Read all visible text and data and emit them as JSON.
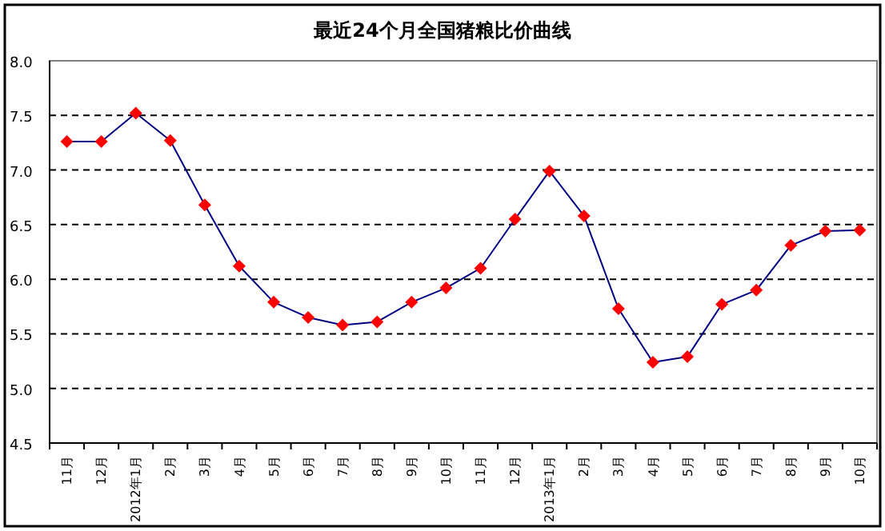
{
  "chart_data": {
    "type": "line",
    "title": "最近24个月全国猪粮比价曲线",
    "categories": [
      "11月",
      "12月",
      "2012年1月",
      "2月",
      "3月",
      "4月",
      "5月",
      "6月",
      "7月",
      "8月",
      "9月",
      "10月",
      "11月",
      "12月",
      "2013年1月",
      "2月",
      "3月",
      "4月",
      "5月",
      "6月",
      "7月",
      "8月",
      "9月",
      "10月"
    ],
    "series": [
      {
        "color": "#000080",
        "colors": [
          "#ff0000",
          "#ff0000",
          "#ff0000",
          "#ff0000",
          "#ff0000",
          "#ff0000",
          "#ff0000",
          "#ff0000",
          "#ff0000",
          "#ff0000",
          "#ff0000",
          "#ff0000",
          "#ff0000",
          "#ff0000",
          "#ff0000",
          "#ff0000",
          "#ff0000",
          "#ff0000",
          "#ff0000",
          "#ff0000",
          "#ff0000",
          "#ff0000",
          "#ff0000",
          "#ff0000"
        ],
        "values": [
          7.26,
          7.26,
          7.52,
          7.27,
          6.68,
          6.12,
          5.79,
          5.65,
          5.58,
          5.61,
          5.79,
          5.92,
          6.1,
          6.55,
          6.99,
          6.58,
          5.73,
          5.24,
          5.29,
          5.77,
          5.9,
          6.31,
          6.44,
          6.45
        ]
      }
    ],
    "ylim": [
      4.5,
      8.0
    ],
    "yticks": [
      {
        "value": 4.5,
        "label": "4.5"
      },
      {
        "value": 5,
        "label": "5.0"
      },
      {
        "value": 5.5,
        "label": "5.5"
      },
      {
        "value": 6,
        "label": "6.0"
      },
      {
        "value": 6.5,
        "label": "6.5"
      },
      {
        "value": 7,
        "label": "7.0"
      },
      {
        "value": 7.5,
        "label": "7.5"
      },
      {
        "value": 8,
        "label": "8.0"
      }
    ],
    "grid": "y",
    "marker": "diamond",
    "line_style": "solid"
  }
}
